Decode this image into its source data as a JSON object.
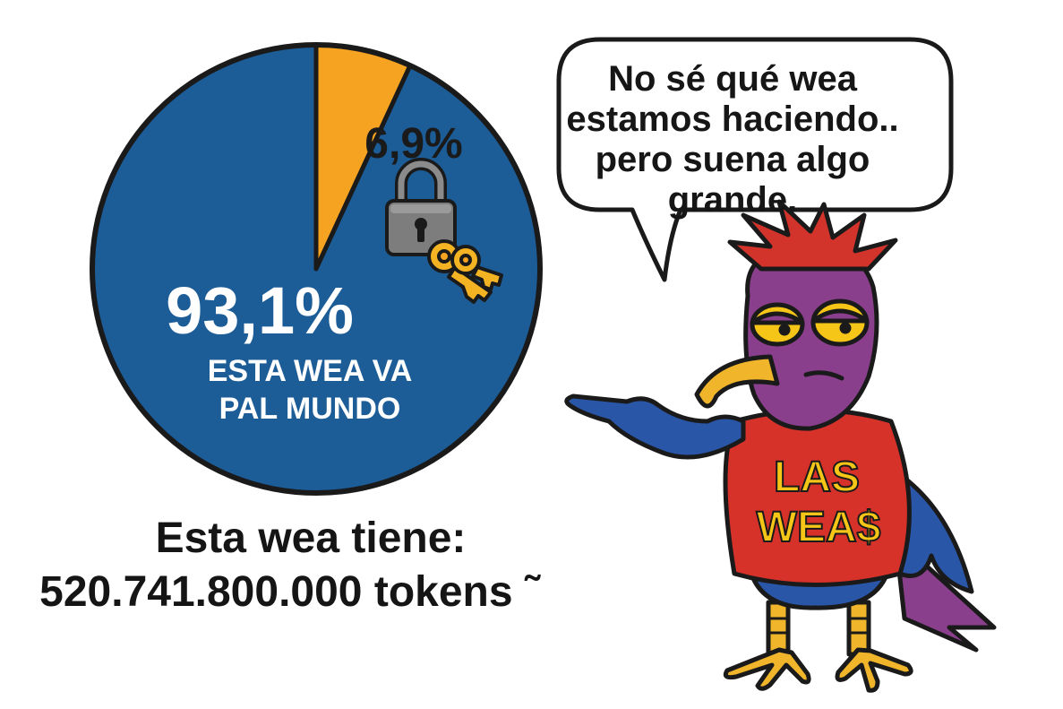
{
  "chart_data": {
    "type": "pie",
    "slices": [
      {
        "label": "6,9%",
        "value": 6.9,
        "color": "#F5A321",
        "icon": "lock-and-keys-icon"
      },
      {
        "label": "93,1%",
        "sublabel_lines": [
          "ESTA WEA VA",
          "PAL MUNDO"
        ],
        "value": 93.1,
        "color": "#1C5C97"
      }
    ]
  },
  "caption": {
    "line1": "Esta wea tiene:",
    "line2": "520.741.800.000 tokens ˜"
  },
  "speech_bubble": {
    "lines": [
      "No sé qué wea",
      "estamos haciendo..",
      "pero suena algo",
      "grande."
    ]
  },
  "mascot": {
    "icon": "cartoon-bird-icon",
    "shirt_lines": [
      "LAS",
      "WEA$"
    ],
    "colors": {
      "body": "#8A3F8C",
      "wings": "#2A56A8",
      "shirt": "#D6322A",
      "crest": "#D2332B",
      "beak": "#F0B52A",
      "legs": "#F0B52A",
      "shirt_text": "#F5C518"
    }
  }
}
